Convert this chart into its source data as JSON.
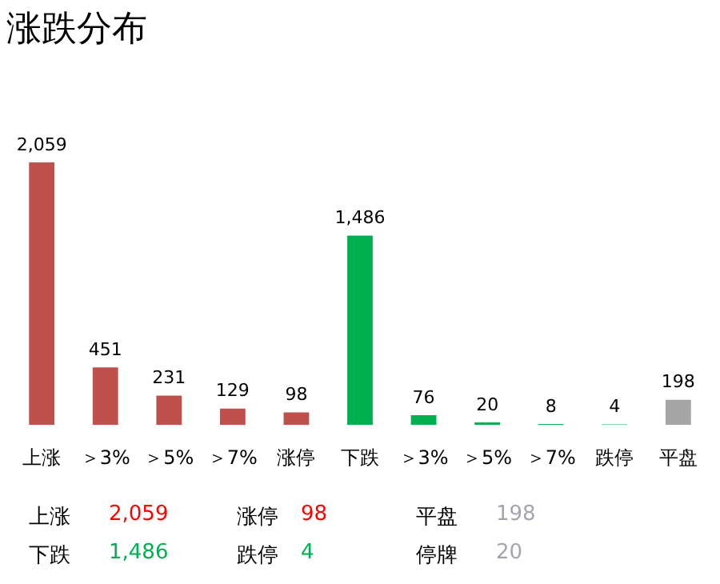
{
  "chart_data": {
    "type": "bar",
    "title": "涨跌分布",
    "categories": [
      "上涨",
      "＞3%",
      "＞5%",
      "＞7%",
      "涨停",
      "下跌",
      "＞3%",
      "＞5%",
      "＞7%",
      "跌停",
      "平盘"
    ],
    "values": [
      2059,
      451,
      231,
      129,
      98,
      1486,
      76,
      20,
      8,
      4,
      198
    ],
    "colors": [
      "#c0504d",
      "#c0504d",
      "#c0504d",
      "#c0504d",
      "#c0504d",
      "#00b050",
      "#00b050",
      "#00b050",
      "#00b050",
      "#00b050",
      "#a5a5a5"
    ],
    "value_labels": [
      "2,059",
      "451",
      "231",
      "129",
      "98",
      "1,486",
      "76",
      "20",
      "8",
      "4",
      "198"
    ],
    "grid": false,
    "legend": false,
    "tick_labels": "x",
    "annotations": [
      "上涨",
      "2,059",
      "涨停",
      "98",
      "平盘",
      "198",
      "下跌",
      "1,486",
      "跌停",
      "4",
      "停牌",
      "20"
    ]
  }
}
